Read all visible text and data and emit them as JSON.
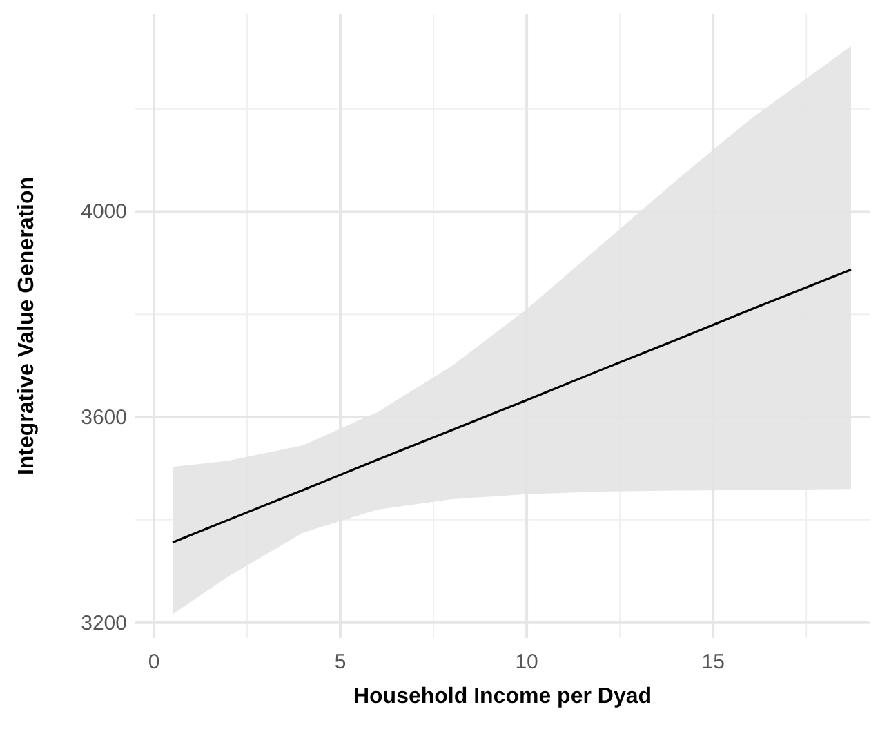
{
  "chart_data": {
    "type": "line",
    "xlabel": "Household Income per Dyad",
    "ylabel": "Integrative Value Generation",
    "xlim": [
      -0.5,
      19.2
    ],
    "ylim": [
      3170,
      4385
    ],
    "xticks": [
      0,
      5,
      10,
      15
    ],
    "yticks": [
      3200,
      3600,
      4000
    ],
    "grid": true,
    "series": [
      {
        "color": "#000000",
        "x": [
          0.5,
          2,
          4,
          6,
          8,
          10,
          12,
          14,
          16,
          18.7
        ],
        "values": [
          3356,
          3400,
          3458,
          3517,
          3575,
          3633,
          3692,
          3750,
          3809,
          3887
        ],
        "lower": [
          3216,
          3290,
          3375,
          3420,
          3440,
          3450,
          3455,
          3457,
          3458,
          3460
        ],
        "upper": [
          3503,
          3515,
          3545,
          3610,
          3700,
          3810,
          3935,
          4060,
          4180,
          4322
        ]
      }
    ]
  }
}
